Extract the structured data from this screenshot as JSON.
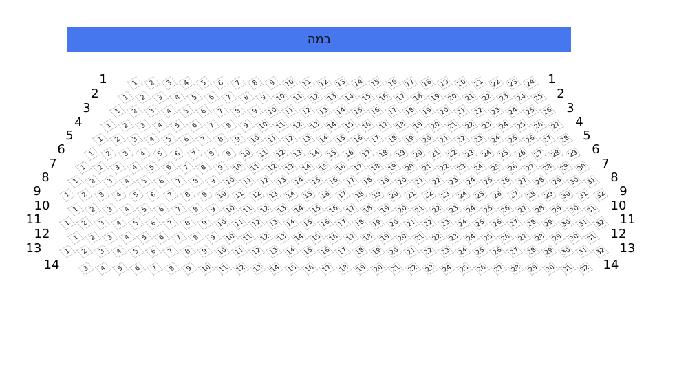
{
  "stage": {
    "label": "במה",
    "color": "#4677ee"
  },
  "rows": [
    {
      "label": "1",
      "first": 1,
      "last": 24
    },
    {
      "label": "2",
      "first": 1,
      "last": 25
    },
    {
      "label": "3",
      "first": 1,
      "last": 26
    },
    {
      "label": "4",
      "first": 1,
      "last": 27
    },
    {
      "label": "5",
      "first": 1,
      "last": 28
    },
    {
      "label": "6",
      "first": 1,
      "last": 29
    },
    {
      "label": "7",
      "first": 1,
      "last": 30
    },
    {
      "label": "8",
      "first": 1,
      "last": 31
    },
    {
      "label": "9",
      "first": 1,
      "last": 32
    },
    {
      "label": "10",
      "first": 1,
      "last": 31
    },
    {
      "label": "11",
      "first": 1,
      "last": 32
    },
    {
      "label": "12",
      "first": 1,
      "last": 31
    },
    {
      "label": "13",
      "first": 1,
      "last": 32
    },
    {
      "label": "14",
      "first": 3,
      "last": 32
    }
  ]
}
